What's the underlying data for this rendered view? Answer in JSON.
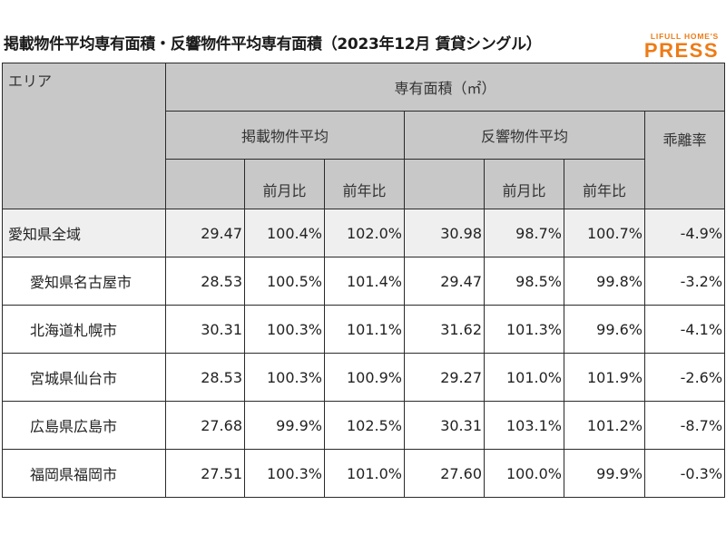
{
  "title": "掲載物件平均専有面積・反響物件平均専有面積（2023年12月 賃貸シングル）",
  "logo": {
    "top": "LIFULL HOME'S",
    "main": "PRESS"
  },
  "colors": {
    "header_bg": "#c8c8c8",
    "first_row_bg": "#efefef",
    "brand": "#ee7b16"
  },
  "header": {
    "area": "エリア",
    "area_size": "専有面積（㎡）",
    "listed_avg": "掲載物件平均",
    "response_avg": "反響物件平均",
    "divergence": "乖離率",
    "mom": "前月比",
    "yoy": "前年比"
  },
  "chart_data": {
    "type": "table",
    "title": "掲載物件平均専有面積・反響物件平均専有面積（2023年12月 賃貸シングル）",
    "columns": [
      "エリア",
      "掲載物件平均",
      "前月比",
      "前年比",
      "反響物件平均",
      "前月比",
      "前年比",
      "乖離率"
    ],
    "rows": [
      {
        "area": "愛知県全域",
        "listed": "29.47",
        "listed_mom": "100.4%",
        "listed_yoy": "102.0%",
        "resp": "30.98",
        "resp_mom": "98.7%",
        "resp_yoy": "100.7%",
        "div": "-4.9%"
      },
      {
        "area": "愛知県名古屋市",
        "listed": "28.53",
        "listed_mom": "100.5%",
        "listed_yoy": "101.4%",
        "resp": "29.47",
        "resp_mom": "98.5%",
        "resp_yoy": "99.8%",
        "div": "-3.2%"
      },
      {
        "area": "北海道札幌市",
        "listed": "30.31",
        "listed_mom": "100.3%",
        "listed_yoy": "101.1%",
        "resp": "31.62",
        "resp_mom": "101.3%",
        "resp_yoy": "99.6%",
        "div": "-4.1%"
      },
      {
        "area": "宮城県仙台市",
        "listed": "28.53",
        "listed_mom": "100.3%",
        "listed_yoy": "100.9%",
        "resp": "29.27",
        "resp_mom": "101.0%",
        "resp_yoy": "101.9%",
        "div": "-2.6%"
      },
      {
        "area": "広島県広島市",
        "listed": "27.68",
        "listed_mom": "99.9%",
        "listed_yoy": "102.5%",
        "resp": "30.31",
        "resp_mom": "103.1%",
        "resp_yoy": "101.2%",
        "div": "-8.7%"
      },
      {
        "area": "福岡県福岡市",
        "listed": "27.51",
        "listed_mom": "100.3%",
        "listed_yoy": "101.0%",
        "resp": "27.60",
        "resp_mom": "100.0%",
        "resp_yoy": "99.9%",
        "div": "-0.3%"
      }
    ]
  }
}
